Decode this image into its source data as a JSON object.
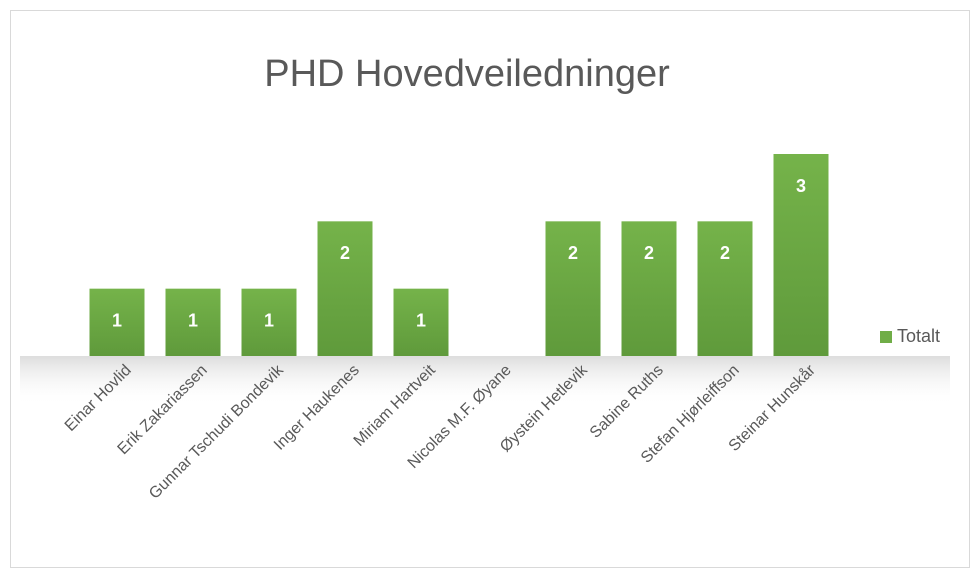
{
  "chart_data": {
    "type": "bar",
    "title": "PHD Hovedveiledninger",
    "categories": [
      "Einar Hovlid",
      "Erik Zakariassen",
      "Gunnar Tschudi Bondevik",
      "Inger Haukenes",
      "Miriam Hartveit",
      "Nicolas M.F. Øyane",
      "Øystein Hetlevik",
      "Sabine Ruths",
      "Stefan Hjørleiffson",
      "Steinar Hunskår"
    ],
    "series": [
      {
        "name": "Totalt",
        "color": "#70ad47",
        "values": [
          1,
          1,
          1,
          2,
          1,
          0,
          2,
          2,
          2,
          3
        ]
      }
    ],
    "ylim": [
      0,
      3
    ],
    "legend": "right",
    "data_labels": true
  }
}
